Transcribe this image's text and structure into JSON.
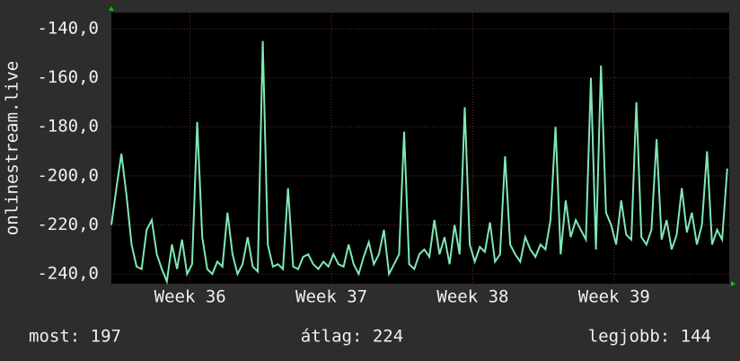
{
  "chart_data": {
    "type": "line",
    "y_label": "onlinestream.live",
    "x": [
      0,
      0.25,
      0.5,
      0.75,
      1,
      1.25,
      1.5,
      1.75,
      2,
      2.25,
      2.5,
      2.75,
      3,
      3.25,
      3.5,
      3.75,
      4,
      4.25,
      4.5,
      4.75,
      5,
      5.25,
      5.5,
      5.75,
      6,
      6.25,
      6.5,
      6.75,
      7,
      7.25,
      7.5,
      7.75,
      8,
      8.25,
      8.5,
      8.75,
      9,
      9.25,
      9.5,
      9.75,
      10,
      10.25,
      10.5,
      10.75,
      11,
      11.25,
      11.5,
      11.75,
      12,
      12.25,
      12.5,
      12.75,
      13,
      13.25,
      13.5,
      13.75,
      14,
      14.25,
      14.5,
      14.75,
      15,
      15.25,
      15.5,
      15.75,
      16,
      16.25,
      16.5,
      16.75,
      17,
      17.25,
      17.5,
      17.75,
      18,
      18.25,
      18.5,
      18.75,
      19,
      19.25,
      19.5,
      19.75,
      20,
      20.25,
      20.5,
      20.75,
      21,
      21.25,
      21.5,
      21.75,
      22,
      22.25,
      22.5,
      22.75,
      23,
      23.25,
      23.5,
      23.75,
      24,
      24.25,
      24.5,
      24.75,
      25,
      25.25,
      25.5,
      25.75,
      26,
      26.25,
      26.5,
      26.75,
      27,
      27.25,
      27.5,
      27.75,
      28,
      28.25,
      28.5,
      28.75,
      29,
      29.25,
      29.5,
      29.75,
      30,
      30.25,
      30.5
    ],
    "series": [
      {
        "color": "#7fe8b4",
        "values": [
          -220,
          -205,
          -191,
          -208,
          -228,
          -237,
          -238,
          -222,
          -218,
          -232,
          -238,
          -243,
          -228,
          -238,
          -226,
          -240,
          -236,
          -178,
          -225,
          -238,
          -240,
          -235,
          -237,
          -215,
          -232,
          -240,
          -236,
          -225,
          -237,
          -239,
          -145,
          -228,
          -237,
          -236,
          -238,
          -205,
          -237,
          -238,
          -233,
          -232,
          -236,
          -238,
          -235,
          -237,
          -232,
          -236,
          -237,
          -228,
          -236,
          -240,
          -233,
          -227,
          -236,
          -232,
          -222,
          -240,
          -236,
          -232,
          -182,
          -236,
          -238,
          -232,
          -230,
          -233,
          -218,
          -232,
          -225,
          -236,
          -220,
          -232,
          -172,
          -228,
          -235,
          -229,
          -231,
          -219,
          -235,
          -232,
          -192,
          -228,
          -232,
          -235,
          -225,
          -230,
          -233,
          -228,
          -230,
          -218,
          -180,
          -232,
          -210,
          -225,
          -218,
          -222,
          -226,
          -160,
          -230,
          -155,
          -215,
          -220,
          -228,
          -210,
          -224,
          -226,
          -170,
          -225,
          -228,
          -222,
          -185,
          -226,
          -218,
          -230,
          -224,
          -205,
          -223,
          -215,
          -228,
          -220,
          -190,
          -228,
          -222,
          -226,
          -197
        ]
      }
    ],
    "xlim": [
      0,
      30.6
    ],
    "xticks": [
      {
        "value": 3.9,
        "label": "Week 36"
      },
      {
        "value": 10.9,
        "label": "Week 37"
      },
      {
        "value": 17.9,
        "label": "Week 38"
      },
      {
        "value": 24.9,
        "label": "Week 39"
      }
    ],
    "ylim": [
      -244,
      -133.4
    ],
    "yticks": [
      {
        "value": -240,
        "label": "-240,0"
      },
      {
        "value": -220,
        "label": "-220,0"
      },
      {
        "value": -200,
        "label": "-200,0"
      },
      {
        "value": -180,
        "label": "-180,0"
      },
      {
        "value": -160,
        "label": "-160,0"
      },
      {
        "value": -140,
        "label": "-140,0"
      }
    ],
    "grid": true,
    "stats": [
      "most: 197",
      "átlag: 224",
      "legjobb: 144"
    ]
  }
}
